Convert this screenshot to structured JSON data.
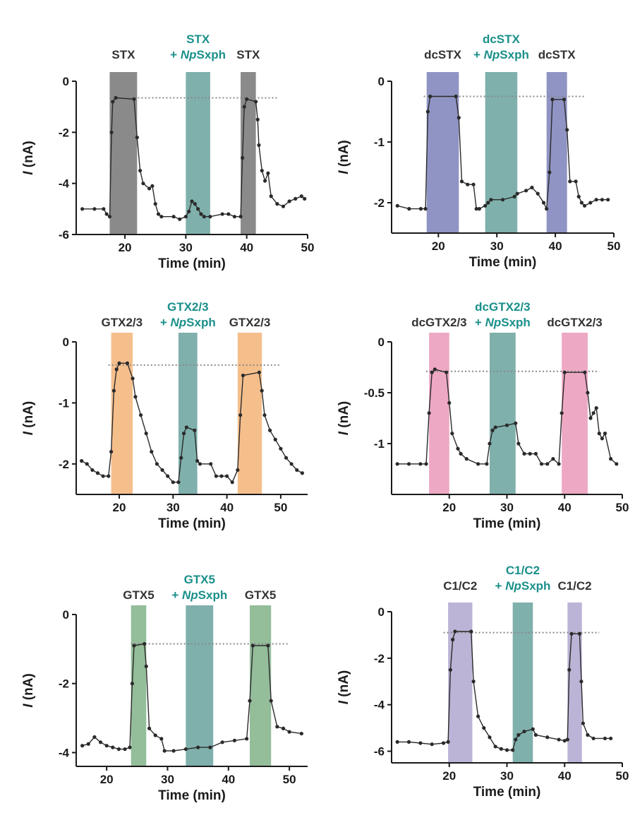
{
  "figure": {
    "description_free": true
  },
  "chart_data": [
    {
      "type": "line",
      "xlabel": "Time (min)",
      "ylabel_italic": "I",
      "ylabel_rest": " (nA)",
      "xlim": [
        12,
        50
      ],
      "ylim": [
        -6,
        0
      ],
      "xticks": [
        20,
        30,
        40,
        50
      ],
      "yticks": [
        0,
        -2,
        -4,
        -6
      ],
      "baseline": -0.65,
      "baseline_xrange": [
        17.5,
        45
      ],
      "bands": [
        {
          "x0": 17.5,
          "x1": 22,
          "color": "#8a8a8a"
        },
        {
          "x0": 30,
          "x1": 34,
          "color": "#7fb0ac"
        },
        {
          "x0": 39,
          "x1": 41.5,
          "color": "#8a8a8a"
        }
      ],
      "labels": [
        {
          "x": 19.75,
          "lines": [
            {
              "text": "STX",
              "color": "#333333"
            }
          ]
        },
        {
          "x": 32,
          "lines": [
            {
              "text": "STX",
              "color": "#1a8f8a"
            },
            {
              "text": "+ NpSxph",
              "color": "#1a8f8a",
              "italic_prefix": "Np",
              "prefix": "+ "
            }
          ]
        },
        {
          "x": 40.25,
          "lines": [
            {
              "text": "STX",
              "color": "#333333"
            }
          ]
        }
      ],
      "trace_x": [
        13,
        15,
        16.5,
        17,
        17.5,
        17.8,
        18,
        18.5,
        21.5,
        22,
        22.5,
        23,
        24,
        24.5,
        25,
        25.5,
        26,
        28,
        29,
        30,
        30.5,
        31,
        31.5,
        32,
        32.5,
        33,
        34,
        36,
        37,
        38,
        39,
        39.3,
        39.6,
        40,
        41.5,
        41.8,
        42,
        42.5,
        43,
        43.5,
        44,
        45,
        46,
        47,
        48,
        49,
        49.5
      ],
      "trace_y": [
        -5,
        -5,
        -5,
        -5.2,
        -5.3,
        -2,
        -0.8,
        -0.65,
        -0.7,
        -2.2,
        -3.5,
        -4,
        -4.2,
        -4.1,
        -4.8,
        -5.2,
        -5.3,
        -5.3,
        -5.4,
        -5.3,
        -5.1,
        -4.7,
        -4.8,
        -5,
        -5.2,
        -5.3,
        -5.3,
        -5.2,
        -5.2,
        -5.3,
        -5.3,
        -3,
        -1,
        -0.7,
        -0.8,
        -1.5,
        -2.5,
        -3.5,
        -3.9,
        -3.6,
        -4.5,
        -4.8,
        -4.9,
        -4.7,
        -4.6,
        -4.5,
        -4.6
      ]
    },
    {
      "type": "line",
      "xlabel": "Time (min)",
      "ylabel_italic": "I",
      "ylabel_rest": " (nA)",
      "xlim": [
        12,
        50
      ],
      "ylim": [
        -2.5,
        0
      ],
      "xticks": [
        20,
        30,
        40,
        50
      ],
      "yticks": [
        0,
        -1,
        -2
      ],
      "baseline": -0.25,
      "baseline_xrange": [
        17.5,
        45
      ],
      "bands": [
        {
          "x0": 18,
          "x1": 23.5,
          "color": "#8f94c4"
        },
        {
          "x0": 28,
          "x1": 33.5,
          "color": "#7fb0ac"
        },
        {
          "x0": 38.5,
          "x1": 42,
          "color": "#8f94c4"
        }
      ],
      "labels": [
        {
          "x": 20.75,
          "lines": [
            {
              "text": "dcSTX",
              "color": "#333333"
            }
          ]
        },
        {
          "x": 30.75,
          "lines": [
            {
              "text": "dcSTX",
              "color": "#1a8f8a"
            },
            {
              "text": "+ NpSxph",
              "color": "#1a8f8a",
              "italic_prefix": "Np",
              "prefix": "+ "
            }
          ]
        },
        {
          "x": 40.25,
          "lines": [
            {
              "text": "dcSTX",
              "color": "#333333"
            }
          ]
        }
      ],
      "trace_x": [
        13,
        15,
        17,
        17.8,
        18.2,
        18.6,
        23,
        23.5,
        24,
        25,
        26,
        26.5,
        27,
        28,
        28.5,
        29,
        31,
        33,
        33.5,
        35,
        36,
        37,
        38,
        38.5,
        39,
        39.5,
        41.5,
        42,
        42.5,
        43.5,
        44,
        44.5,
        45,
        46,
        47,
        48,
        49
      ],
      "trace_y": [
        -2.05,
        -2.1,
        -2.1,
        -2.1,
        -0.5,
        -0.25,
        -0.25,
        -0.6,
        -1.65,
        -1.7,
        -1.7,
        -2.1,
        -2.1,
        -2.05,
        -2,
        -1.95,
        -1.95,
        -1.9,
        -1.85,
        -1.8,
        -1.75,
        -1.85,
        -2,
        -2.1,
        -1.5,
        -0.3,
        -0.3,
        -0.8,
        -1.65,
        -1.65,
        -1.9,
        -2,
        -2.05,
        -2,
        -1.95,
        -1.95,
        -1.95
      ]
    },
    {
      "type": "line",
      "xlabel": "Time (min)",
      "ylabel_italic": "I",
      "ylabel_rest": " (nA)",
      "xlim": [
        12,
        55
      ],
      "ylim": [
        -2.5,
        0
      ],
      "xticks": [
        20,
        30,
        40,
        50
      ],
      "yticks": [
        0,
        -1,
        -2
      ],
      "baseline": -0.38,
      "baseline_xrange": [
        18,
        50
      ],
      "bands": [
        {
          "x0": 18.5,
          "x1": 22.5,
          "color": "#f5bf8c"
        },
        {
          "x0": 31,
          "x1": 34.5,
          "color": "#7fb0ac"
        },
        {
          "x0": 42,
          "x1": 46.5,
          "color": "#f5bf8c"
        }
      ],
      "labels": [
        {
          "x": 20.5,
          "lines": [
            {
              "text": "GTX2/3",
              "color": "#333333"
            }
          ]
        },
        {
          "x": 32.75,
          "lines": [
            {
              "text": "GTX2/3",
              "color": "#1a8f8a"
            },
            {
              "text": "+ NpSxph",
              "color": "#1a8f8a",
              "italic_prefix": "Np",
              "prefix": "+ "
            }
          ]
        },
        {
          "x": 44.25,
          "lines": [
            {
              "text": "GTX2/3",
              "color": "#333333"
            }
          ]
        }
      ],
      "trace_x": [
        13,
        14,
        15,
        16,
        17,
        18,
        18.5,
        19,
        19.5,
        20,
        21.5,
        22.5,
        23,
        24,
        25,
        26,
        27,
        28,
        29,
        30,
        31,
        31.5,
        32,
        32.5,
        34,
        34.5,
        35,
        37,
        38,
        39,
        40,
        41,
        42,
        42.5,
        43,
        46,
        46.5,
        47,
        48,
        49,
        50,
        51,
        52,
        53,
        54
      ],
      "trace_y": [
        -1.95,
        -2,
        -2.1,
        -2.15,
        -2.2,
        -2.2,
        -1.8,
        -0.8,
        -0.45,
        -0.35,
        -0.35,
        -0.6,
        -0.9,
        -1.2,
        -1.5,
        -1.8,
        -2,
        -2.1,
        -2.2,
        -2.3,
        -2.3,
        -1.9,
        -1.5,
        -1.4,
        -1.45,
        -1.95,
        -2,
        -2,
        -2.2,
        -2.2,
        -2.2,
        -2.3,
        -2.1,
        -1.2,
        -0.55,
        -0.5,
        -0.8,
        -1.2,
        -1.45,
        -1.6,
        -1.75,
        -1.9,
        -2,
        -2.1,
        -2.15
      ]
    },
    {
      "type": "line",
      "xlabel": "Time (min)",
      "ylabel_italic": "I",
      "ylabel_rest": " (nA)",
      "xlim": [
        10,
        50
      ],
      "ylim": [
        -1.5,
        0
      ],
      "xticks": [
        20,
        30,
        40,
        50
      ],
      "yticks": [
        0,
        -0.5,
        -1
      ],
      "baseline": -0.29,
      "baseline_xrange": [
        16,
        46
      ],
      "bands": [
        {
          "x0": 16.5,
          "x1": 20,
          "color": "#eda8c4"
        },
        {
          "x0": 27,
          "x1": 31.5,
          "color": "#7fb0ac"
        },
        {
          "x0": 39.5,
          "x1": 44,
          "color": "#eda8c4"
        }
      ],
      "labels": [
        {
          "x": 18.25,
          "lines": [
            {
              "text": "dcGTX2/3",
              "color": "#333333"
            }
          ]
        },
        {
          "x": 29.25,
          "lines": [
            {
              "text": "dcGTX2/3",
              "color": "#1a8f8a"
            },
            {
              "text": "+ NpSxph",
              "color": "#1a8f8a",
              "italic_prefix": "Np",
              "prefix": "+ "
            }
          ]
        },
        {
          "x": 41.75,
          "lines": [
            {
              "text": "dcGTX2/3",
              "color": "#333333"
            }
          ]
        }
      ],
      "trace_x": [
        11,
        13,
        15,
        16,
        16.5,
        17,
        17.5,
        19.5,
        20,
        20.5,
        21.5,
        22,
        23,
        25,
        26.5,
        27,
        27.5,
        28,
        30,
        31.5,
        32,
        33,
        34,
        35,
        36,
        37,
        38,
        39,
        39.5,
        40,
        43.5,
        44,
        44.5,
        45,
        45.5,
        46,
        46.5,
        47,
        48,
        49
      ],
      "trace_y": [
        -1.2,
        -1.2,
        -1.2,
        -1.2,
        -0.7,
        -0.3,
        -0.27,
        -0.3,
        -0.6,
        -0.9,
        -1.05,
        -1.1,
        -1.15,
        -1.2,
        -1.2,
        -1,
        -0.87,
        -0.84,
        -0.82,
        -0.8,
        -1,
        -1.1,
        -1.1,
        -1.1,
        -1.2,
        -1.2,
        -1.15,
        -1.2,
        -0.7,
        -0.3,
        -0.3,
        -0.5,
        -0.75,
        -0.7,
        -0.65,
        -0.9,
        -0.95,
        -0.9,
        -1.15,
        -1.2
      ]
    },
    {
      "type": "line",
      "xlabel": "Time (min)",
      "ylabel_italic": "I",
      "ylabel_rest": " (nA)",
      "xlim": [
        15,
        53
      ],
      "ylim": [
        -4.4,
        0
      ],
      "xticks": [
        20,
        30,
        40,
        50
      ],
      "yticks": [
        0,
        -2,
        -4
      ],
      "baseline": -0.85,
      "baseline_xrange": [
        24,
        50
      ],
      "bands": [
        {
          "x0": 24,
          "x1": 26.5,
          "color": "#94bd9a"
        },
        {
          "x0": 33,
          "x1": 37.5,
          "color": "#7fb0ac"
        },
        {
          "x0": 43.5,
          "x1": 47,
          "color": "#94bd9a"
        }
      ],
      "labels": [
        {
          "x": 25.25,
          "lines": [
            {
              "text": "GTX5",
              "color": "#333333"
            }
          ]
        },
        {
          "x": 35.25,
          "lines": [
            {
              "text": "GTX5",
              "color": "#1a8f8a"
            },
            {
              "text": "+ NpSxph",
              "color": "#1a8f8a",
              "italic_prefix": "Np",
              "prefix": "+ "
            }
          ]
        },
        {
          "x": 45.25,
          "lines": [
            {
              "text": "GTX5",
              "color": "#333333"
            }
          ]
        }
      ],
      "trace_x": [
        16,
        17,
        18,
        19,
        20,
        21,
        22,
        23,
        23.8,
        24.2,
        24.5,
        26.2,
        26.5,
        27,
        28,
        29,
        29.5,
        31,
        33,
        35,
        37,
        39,
        41,
        43,
        43.5,
        44,
        46.5,
        47,
        48,
        49,
        50,
        52
      ],
      "trace_y": [
        -3.8,
        -3.75,
        -3.55,
        -3.7,
        -3.8,
        -3.85,
        -3.9,
        -3.9,
        -3.85,
        -2,
        -0.9,
        -0.85,
        -1.5,
        -3.3,
        -3.5,
        -3.6,
        -3.95,
        -3.95,
        -3.9,
        -3.85,
        -3.85,
        -3.7,
        -3.65,
        -3.6,
        -2.5,
        -0.9,
        -0.9,
        -2.5,
        -3.25,
        -3.3,
        -3.4,
        -3.45
      ]
    },
    {
      "type": "line",
      "xlabel": "Time (min)",
      "ylabel_italic": "I",
      "ylabel_rest": " (nA)",
      "xlim": [
        10,
        50
      ],
      "ylim": [
        -6.5,
        0
      ],
      "xticks": [
        20,
        30,
        40,
        50
      ],
      "yticks": [
        0,
        -2,
        -4,
        -6
      ],
      "baseline": -0.9,
      "baseline_xrange": [
        19,
        46
      ],
      "bands": [
        {
          "x0": 19.8,
          "x1": 24,
          "color": "#bcb4d6"
        },
        {
          "x0": 31,
          "x1": 34.5,
          "color": "#7fb0ac"
        },
        {
          "x0": 40.5,
          "x1": 43,
          "color": "#bcb4d6"
        }
      ],
      "labels": [
        {
          "x": 21.9,
          "lines": [
            {
              "text": "C1/C2",
              "color": "#333333"
            }
          ]
        },
        {
          "x": 32.75,
          "lines": [
            {
              "text": "C1/C2",
              "color": "#1a8f8a"
            },
            {
              "text": "+ NpSxph",
              "color": "#1a8f8a",
              "italic_prefix": "Np",
              "prefix": "+ "
            }
          ]
        },
        {
          "x": 41.75,
          "lines": [
            {
              "text": "C1/C2",
              "color": "#333333"
            }
          ]
        }
      ],
      "trace_x": [
        11,
        13,
        15,
        17,
        19,
        19.8,
        20.2,
        20.6,
        21,
        23.8,
        24.2,
        25,
        26,
        27,
        28,
        29,
        30,
        31,
        31.5,
        32,
        33,
        34.5,
        35,
        37,
        39,
        40,
        40.5,
        40.8,
        41.2,
        42.6,
        42.9,
        43.2,
        44,
        45,
        47,
        48
      ],
      "trace_y": [
        -5.6,
        -5.6,
        -5.65,
        -5.7,
        -5.65,
        -5.6,
        -2.5,
        -1.2,
        -0.85,
        -0.85,
        -3,
        -4.5,
        -5,
        -5.4,
        -5.8,
        -5.9,
        -5.95,
        -5.95,
        -5.5,
        -5.3,
        -5.15,
        -5.05,
        -5.3,
        -5.4,
        -5.5,
        -5.55,
        -5.5,
        -2.5,
        -0.95,
        -0.95,
        -3,
        -4.8,
        -5.3,
        -5.45,
        -5.45,
        -5.45
      ]
    }
  ]
}
